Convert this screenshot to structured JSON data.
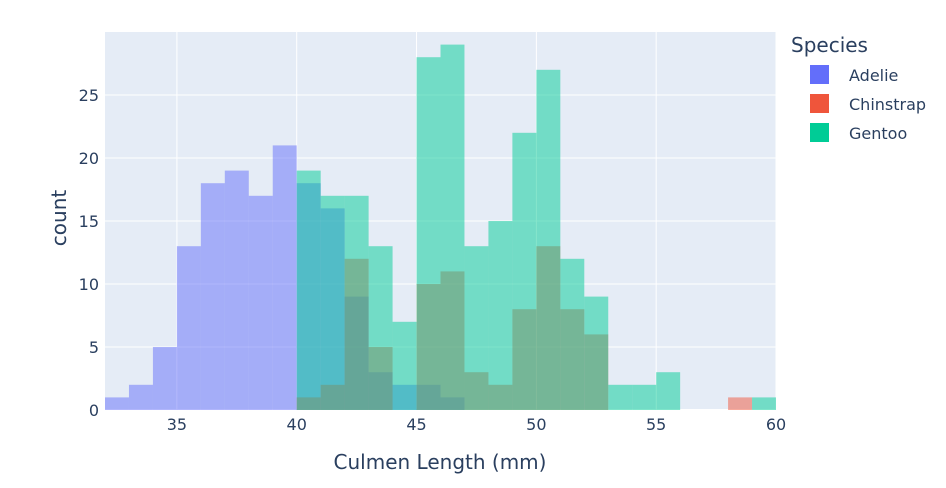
{
  "chart_data": {
    "type": "bar",
    "barmode": "overlay",
    "title": "",
    "xlabel": "Culmen Length (mm)",
    "ylabel": "count",
    "xlim": [
      32,
      60
    ],
    "ylim": [
      0,
      30
    ],
    "bin_width": 1,
    "x_ticks": [
      35,
      40,
      45,
      50,
      55,
      60
    ],
    "y_ticks": [
      0,
      5,
      10,
      15,
      20,
      25
    ],
    "grid": true,
    "legend_position": "right",
    "legend_title": "Species",
    "series": [
      {
        "name": "Adelie",
        "color": "#636efa",
        "bins": [
          {
            "x0": 32,
            "x1": 33,
            "count": 1
          },
          {
            "x0": 33,
            "x1": 34,
            "count": 2
          },
          {
            "x0": 34,
            "x1": 35,
            "count": 5
          },
          {
            "x0": 35,
            "x1": 36,
            "count": 13
          },
          {
            "x0": 36,
            "x1": 37,
            "count": 18
          },
          {
            "x0": 37,
            "x1": 38,
            "count": 19
          },
          {
            "x0": 38,
            "x1": 39,
            "count": 17
          },
          {
            "x0": 39,
            "x1": 40,
            "count": 21
          },
          {
            "x0": 40,
            "x1": 41,
            "count": 18
          },
          {
            "x0": 41,
            "x1": 42,
            "count": 16
          },
          {
            "x0": 42,
            "x1": 43,
            "count": 9
          },
          {
            "x0": 43,
            "x1": 44,
            "count": 3
          },
          {
            "x0": 44,
            "x1": 45,
            "count": 2
          },
          {
            "x0": 45,
            "x1": 46,
            "count": 2
          },
          {
            "x0": 46,
            "x1": 47,
            "count": 1
          }
        ]
      },
      {
        "name": "Chinstrap",
        "color": "#ef553b",
        "bins": [
          {
            "x0": 40,
            "x1": 41,
            "count": 1
          },
          {
            "x0": 41,
            "x1": 42,
            "count": 2
          },
          {
            "x0": 42,
            "x1": 43,
            "count": 12
          },
          {
            "x0": 43,
            "x1": 44,
            "count": 5
          },
          {
            "x0": 45,
            "x1": 46,
            "count": 10
          },
          {
            "x0": 46,
            "x1": 47,
            "count": 11
          },
          {
            "x0": 47,
            "x1": 48,
            "count": 3
          },
          {
            "x0": 48,
            "x1": 49,
            "count": 2
          },
          {
            "x0": 49,
            "x1": 50,
            "count": 8
          },
          {
            "x0": 50,
            "x1": 51,
            "count": 13
          },
          {
            "x0": 51,
            "x1": 52,
            "count": 8
          },
          {
            "x0": 52,
            "x1": 53,
            "count": 6
          },
          {
            "x0": 58,
            "x1": 59,
            "count": 1
          }
        ]
      },
      {
        "name": "Gentoo",
        "color": "#00cc96",
        "bins": [
          {
            "x0": 40,
            "x1": 41,
            "count": 19
          },
          {
            "x0": 41,
            "x1": 42,
            "count": 17
          },
          {
            "x0": 42,
            "x1": 43,
            "count": 17
          },
          {
            "x0": 43,
            "x1": 44,
            "count": 13
          },
          {
            "x0": 44,
            "x1": 45,
            "count": 7
          },
          {
            "x0": 45,
            "x1": 46,
            "count": 28
          },
          {
            "x0": 46,
            "x1": 47,
            "count": 29
          },
          {
            "x0": 47,
            "x1": 48,
            "count": 13
          },
          {
            "x0": 48,
            "x1": 49,
            "count": 15
          },
          {
            "x0": 49,
            "x1": 50,
            "count": 22
          },
          {
            "x0": 50,
            "x1": 51,
            "count": 27
          },
          {
            "x0": 51,
            "x1": 52,
            "count": 12
          },
          {
            "x0": 52,
            "x1": 53,
            "count": 9
          },
          {
            "x0": 53,
            "x1": 54,
            "count": 2
          },
          {
            "x0": 54,
            "x1": 55,
            "count": 2
          },
          {
            "x0": 55,
            "x1": 56,
            "count": 3
          },
          {
            "x0": 59,
            "x1": 60,
            "count": 1
          }
        ]
      }
    ]
  }
}
